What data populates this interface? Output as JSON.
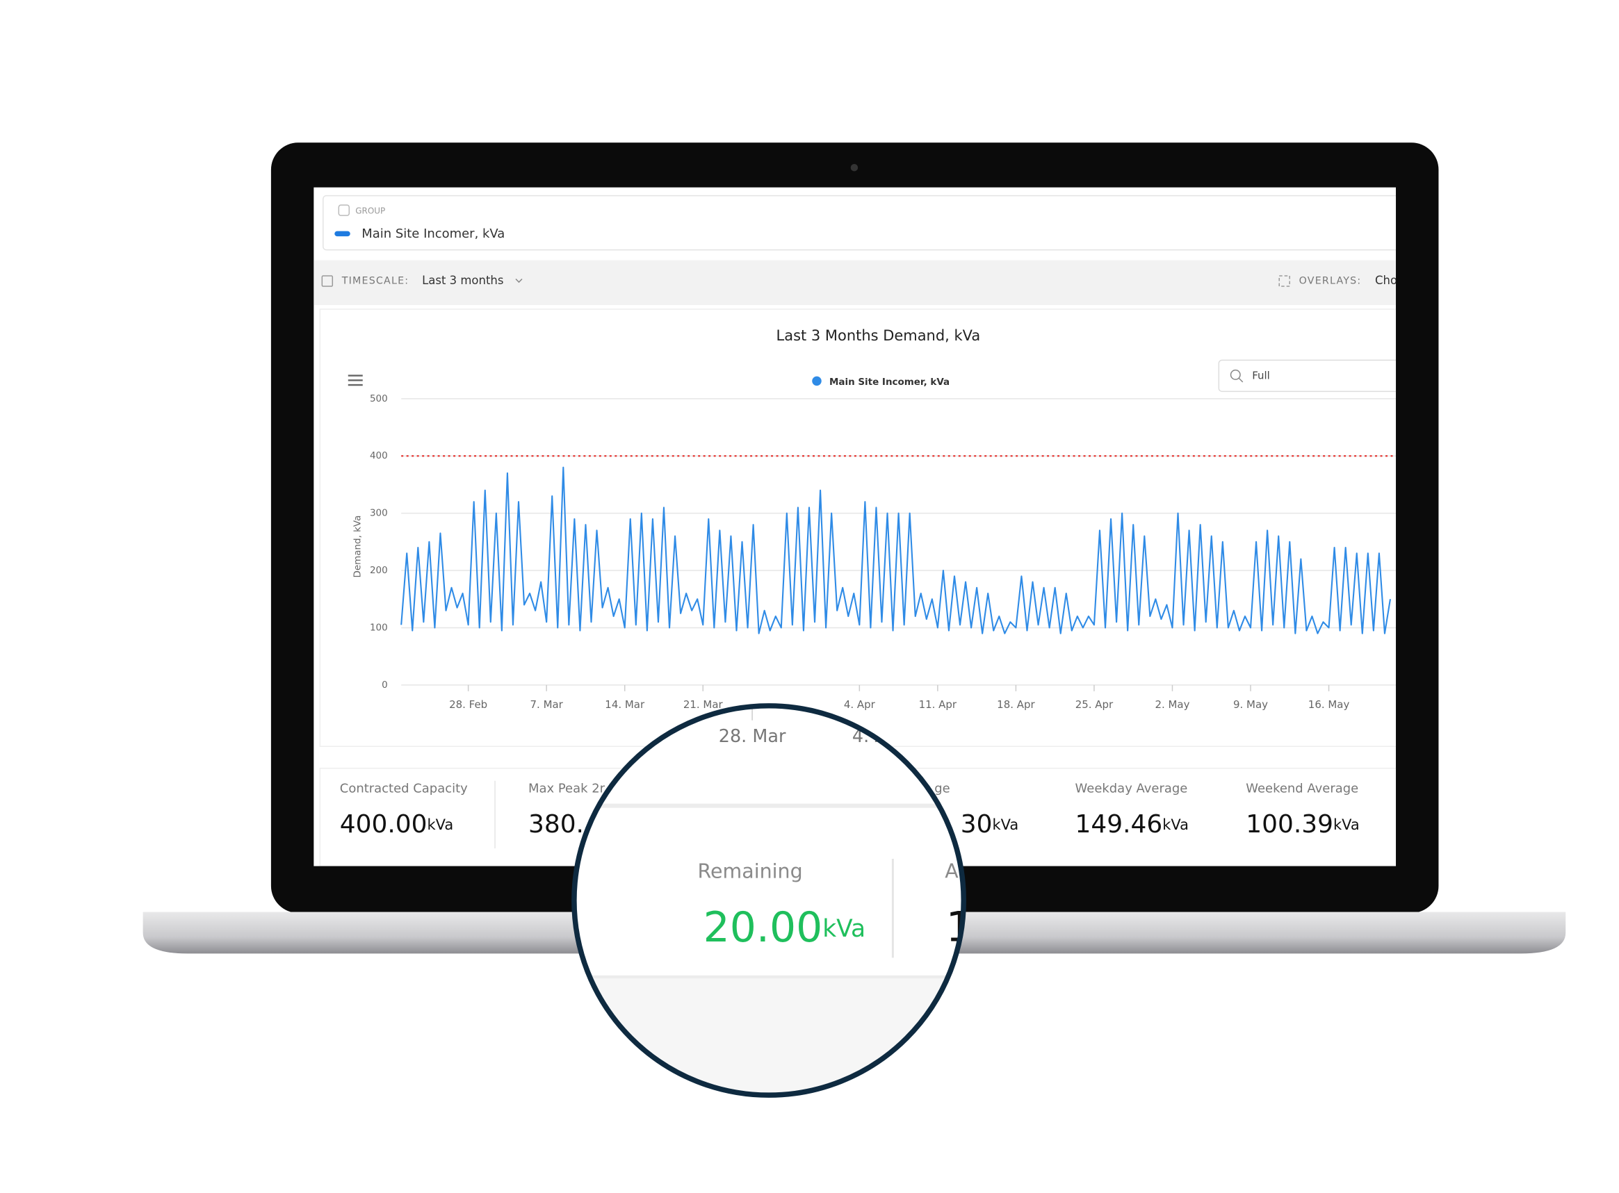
{
  "header": {
    "group_label": "GROUP",
    "group_name": "Main Site Incomer, kVa"
  },
  "toolbar": {
    "timescale_label": "TIMESCALE:",
    "timescale_value": "Last 3 months",
    "overlays_label": "OVERLAYS:",
    "overlays_value": "Cho"
  },
  "chart_controls": {
    "zoom": "Full"
  },
  "chart_data": {
    "type": "line",
    "title": "Last 3 Months Demand, kVa",
    "y_label": "Demand, kVa",
    "x": [
      0,
      0.5,
      1,
      1.5,
      2,
      2.5,
      3,
      3.5,
      4,
      4.5,
      5,
      5.5,
      6,
      6.5,
      7,
      7.5,
      8,
      8.5,
      9,
      9.5,
      10,
      10.5,
      11,
      11.5,
      12,
      12.5,
      13,
      13.5,
      14,
      14.5,
      15,
      15.5,
      16,
      16.5,
      17,
      17.5,
      18,
      18.5,
      19,
      19.5,
      20,
      20.5,
      21,
      21.5,
      22,
      22.5,
      23,
      23.5,
      24,
      24.5,
      25,
      25.5,
      26,
      26.5,
      27,
      27.5,
      28,
      28.5,
      29,
      29.5,
      30,
      30.5,
      31,
      31.5,
      32,
      32.5,
      33,
      33.5,
      34,
      34.5,
      35,
      35.5,
      36,
      36.5,
      37,
      37.5,
      38,
      38.5,
      39,
      39.5,
      40,
      40.5,
      41,
      41.5,
      42,
      42.5,
      43,
      43.5,
      44,
      44.5,
      45,
      45.5,
      46,
      46.5,
      47,
      47.5,
      48,
      48.5,
      49,
      49.5,
      50,
      50.5,
      51,
      51.5,
      52,
      52.5,
      53,
      53.5,
      54,
      54.5,
      55,
      55.5,
      56,
      56.5,
      57,
      57.5,
      58,
      58.5,
      59,
      59.5,
      60,
      60.5,
      61,
      61.5,
      62,
      62.5,
      63,
      63.5,
      64,
      64.5,
      65,
      65.5,
      66,
      66.5,
      67,
      67.5,
      68,
      68.5,
      69,
      69.5,
      70,
      70.5,
      71,
      71.5,
      72,
      72.5,
      73,
      73.5,
      74,
      74.5,
      75,
      75.5,
      76,
      76.5,
      77,
      77.5,
      78,
      78.5,
      79,
      79.5,
      80,
      80.5,
      81,
      81.5,
      82,
      82.5,
      83,
      83.5,
      84,
      84.5,
      85,
      85.5,
      86,
      86.5,
      87,
      87.5,
      88,
      88.5
    ],
    "series": [
      {
        "name": "Main Site Incomer, kVa",
        "color": "#2f8be6",
        "values": [
          105,
          230,
          95,
          240,
          110,
          250,
          100,
          265,
          130,
          170,
          135,
          160,
          105,
          320,
          100,
          340,
          110,
          300,
          95,
          370,
          105,
          320,
          140,
          160,
          130,
          180,
          110,
          330,
          100,
          380,
          105,
          290,
          95,
          280,
          110,
          270,
          135,
          170,
          120,
          150,
          100,
          290,
          105,
          300,
          95,
          290,
          110,
          310,
          100,
          260,
          125,
          160,
          130,
          150,
          105,
          290,
          100,
          270,
          110,
          260,
          95,
          250,
          100,
          280,
          90,
          130,
          95,
          120,
          100,
          300,
          105,
          310,
          95,
          310,
          110,
          340,
          100,
          300,
          130,
          170,
          120,
          160,
          105,
          320,
          100,
          310,
          110,
          300,
          95,
          300,
          105,
          300,
          120,
          160,
          115,
          150,
          100,
          200,
          95,
          190,
          105,
          180,
          100,
          170,
          90,
          160,
          95,
          120,
          90,
          110,
          100,
          190,
          95,
          180,
          105,
          170,
          100,
          170,
          90,
          160,
          95,
          120,
          100,
          120,
          105,
          270,
          100,
          290,
          110,
          300,
          95,
          280,
          105,
          260,
          120,
          150,
          115,
          140,
          100,
          300,
          105,
          270,
          95,
          280,
          110,
          260,
          100,
          250,
          100,
          130,
          95,
          120,
          100,
          250,
          95,
          270,
          105,
          260,
          100,
          250,
          90,
          220,
          95,
          120,
          90,
          110,
          100,
          240,
          95,
          240,
          105,
          230,
          90,
          230,
          95,
          230,
          90,
          150
        ]
      }
    ],
    "threshold": 400,
    "threshold_color": "#e53935",
    "xlim": [
      0,
      89
    ],
    "ylim": [
      0,
      500
    ],
    "yticks": [
      0,
      100,
      200,
      300,
      400,
      500
    ],
    "xticks": [
      {
        "value": 6,
        "label": "28. Feb"
      },
      {
        "value": 13,
        "label": "7. Mar"
      },
      {
        "value": 20,
        "label": "14. Mar"
      },
      {
        "value": 27,
        "label": "21. Mar"
      },
      {
        "value": 41,
        "label": "4. Apr"
      },
      {
        "value": 48,
        "label": "11. Apr"
      },
      {
        "value": 55,
        "label": "18. Apr"
      },
      {
        "value": 62,
        "label": "25. Apr"
      },
      {
        "value": 69,
        "label": "2. May"
      },
      {
        "value": 76,
        "label": "9. May"
      },
      {
        "value": 83,
        "label": "16. May"
      }
    ],
    "grid": true,
    "legend": "top"
  },
  "stats": [
    {
      "label": "Contracted Capacity",
      "value": "400.00",
      "unit": "kVa"
    },
    {
      "label": "Max Peak 2r",
      "value": "380."
    },
    {
      "label": "ge",
      "value": "30",
      "unit": "kVa"
    },
    {
      "label": "Weekday Average",
      "value": "149.46",
      "unit": "kVa"
    },
    {
      "label": "Weekend Average",
      "value": "100.39",
      "unit": "kVa"
    }
  ],
  "magnifier": {
    "ticks": [
      "28. Mar",
      "4. A"
    ],
    "label": "Remaining",
    "value": "20.00",
    "unit": "kVa",
    "next_label": "A",
    "next_value": "1"
  }
}
